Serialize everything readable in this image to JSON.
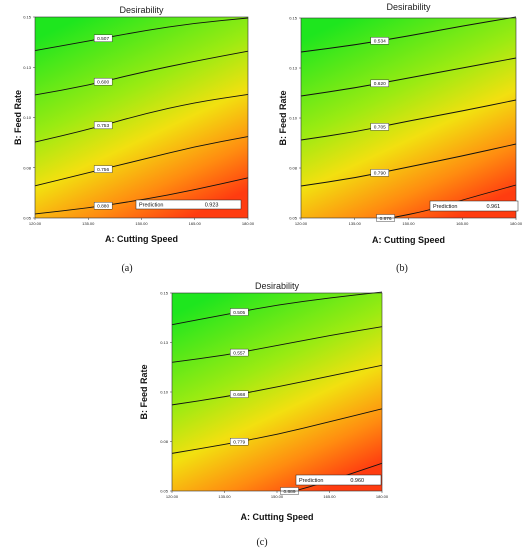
{
  "chart_data": [
    {
      "type": "contour",
      "panel_caption": "(a)",
      "title": "Desirability",
      "xlabel": "A: Cutting Speed",
      "ylabel": "B: Feed Rate",
      "xticks": [
        "120.00",
        "135.00",
        "150.00",
        "165.00",
        "180.00"
      ],
      "yticks": [
        "0.05",
        "0.08",
        "0.10",
        "0.13",
        "0.15"
      ],
      "xlim": [
        120,
        180
      ],
      "ylim": [
        0.05,
        0.15
      ],
      "contours": [
        {
          "label": "0.507",
          "points": [
            [
              120,
              0.1333
            ],
            [
              135,
              0.138
            ],
            [
              150,
              0.143
            ],
            [
              165,
              0.147
            ],
            [
              180,
              0.1495
            ]
          ]
        },
        {
          "label": "0.600",
          "points": [
            [
              120,
              0.1112
            ],
            [
              135,
              0.116
            ],
            [
              150,
              0.1225
            ],
            [
              165,
              0.128
            ],
            [
              180,
              0.133
            ]
          ]
        },
        {
          "label": "0.753",
          "points": [
            [
              120,
              0.0878
            ],
            [
              135,
              0.094
            ],
            [
              150,
              0.1015
            ],
            [
              165,
              0.1075
            ],
            [
              180,
              0.1115
            ]
          ]
        },
        {
          "label": "0.756",
          "points": [
            [
              120,
              0.066
            ],
            [
              135,
              0.0725
            ],
            [
              150,
              0.079
            ],
            [
              165,
              0.0855
            ],
            [
              180,
              0.0905
            ]
          ]
        },
        {
          "label": "0.880",
          "points": [
            [
              120,
              0.052
            ],
            [
              135,
              0.055
            ],
            [
              150,
              0.059
            ],
            [
              165,
              0.064
            ],
            [
              180,
              0.07
            ]
          ]
        }
      ],
      "prediction": {
        "label": "Prediction",
        "value": "0.923"
      }
    },
    {
      "type": "contour",
      "panel_caption": "(b)",
      "title": "Desirability",
      "xlabel": "A: Cutting Speed",
      "ylabel": "B: Feed Rate",
      "xticks": [
        "120.00",
        "135.00",
        "150.00",
        "165.00",
        "180.00"
      ],
      "yticks": [
        "0.05",
        "0.08",
        "0.10",
        "0.13",
        "0.15"
      ],
      "xlim": [
        120,
        180
      ],
      "ylim": [
        0.05,
        0.15
      ],
      "contours": [
        {
          "label": "0.534",
          "points": [
            [
              120,
              0.133
            ],
            [
              135,
              0.1365
            ],
            [
              150,
              0.141
            ],
            [
              165,
              0.146
            ],
            [
              180,
              0.1505
            ]
          ]
        },
        {
          "label": "0.620",
          "points": [
            [
              120,
              0.111
            ],
            [
              135,
              0.115
            ],
            [
              150,
              0.12
            ],
            [
              165,
              0.125
            ],
            [
              180,
              0.13
            ]
          ]
        },
        {
          "label": "0.705",
          "points": [
            [
              120,
              0.089
            ],
            [
              135,
              0.093
            ],
            [
              150,
              0.0985
            ],
            [
              165,
              0.1035
            ],
            [
              180,
              0.109
            ]
          ]
        },
        {
          "label": "0.790",
          "points": [
            [
              120,
              0.066
            ],
            [
              135,
              0.07
            ],
            [
              150,
              0.0755
            ],
            [
              165,
              0.081
            ],
            [
              180,
              0.087
            ]
          ]
        },
        {
          "label": "0.876",
          "points": [
            [
              145,
              0.05
            ],
            [
              155,
              0.0535
            ],
            [
              165,
              0.059
            ],
            [
              175,
              0.064
            ],
            [
              180,
              0.0665
            ]
          ]
        }
      ],
      "prediction": {
        "label": "Prediction",
        "value": "0.961"
      }
    },
    {
      "type": "contour",
      "panel_caption": "(c)",
      "title": "Desirability",
      "xlabel": "A: Cutting Speed",
      "ylabel": "B: Feed Rate",
      "xticks": [
        "120.00",
        "135.00",
        "150.00",
        "165.00",
        "180.00"
      ],
      "yticks": [
        "0.05",
        "0.08",
        "0.10",
        "0.13",
        "0.15"
      ],
      "xlim": [
        120,
        180
      ],
      "ylim": [
        0.05,
        0.15
      ],
      "contours": [
        {
          "label": "0.505",
          "points": [
            [
              120,
              0.134
            ],
            [
              135,
              0.139
            ],
            [
              150,
              0.144
            ],
            [
              165,
              0.1475
            ],
            [
              180,
              0.1505
            ]
          ]
        },
        {
          "label": "0.557",
          "points": [
            [
              120,
              0.115
            ],
            [
              135,
              0.1185
            ],
            [
              150,
              0.1235
            ],
            [
              165,
              0.1285
            ],
            [
              180,
              0.133
            ]
          ]
        },
        {
          "label": "0.668",
          "points": [
            [
              120,
              0.0935
            ],
            [
              135,
              0.0975
            ],
            [
              150,
              0.1025
            ],
            [
              165,
              0.108
            ],
            [
              180,
              0.1135
            ]
          ]
        },
        {
          "label": "0.779",
          "points": [
            [
              120,
              0.069
            ],
            [
              135,
              0.0735
            ],
            [
              150,
              0.0785
            ],
            [
              165,
              0.085
            ],
            [
              180,
              0.0915
            ]
          ]
        },
        {
          "label": "0.889",
          "points": [
            [
              155,
              0.05
            ],
            [
              163,
              0.054
            ],
            [
              170,
              0.058
            ],
            [
              180,
              0.064
            ]
          ]
        }
      ],
      "prediction": {
        "label": "Prediction",
        "value": "0.960"
      }
    }
  ]
}
